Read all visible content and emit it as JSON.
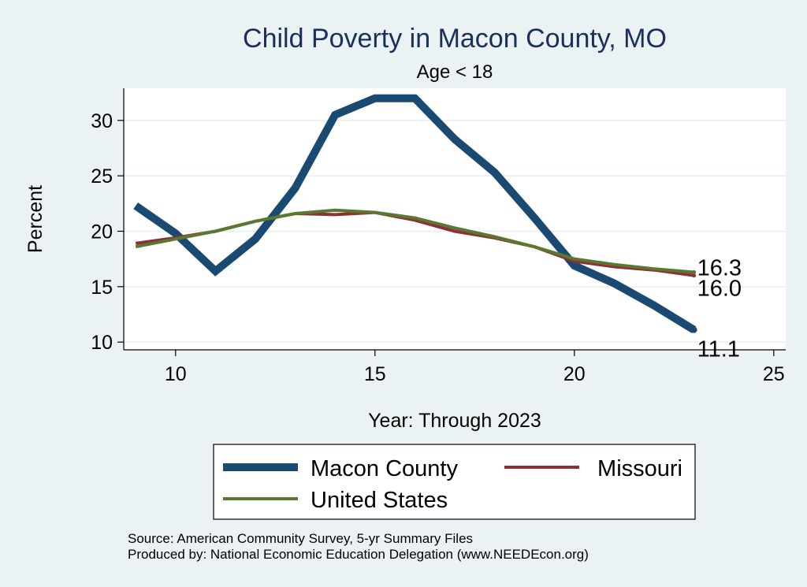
{
  "chart_data": {
    "type": "line",
    "title": "Child Poverty in Macon County, MO",
    "subtitle": "Age < 18",
    "xlabel": "Year: Through 2023",
    "ylabel": "Percent",
    "xlim": [
      8.7,
      25.3
    ],
    "ylim": [
      9.3,
      32.9
    ],
    "xticks": [
      10,
      15,
      20,
      25
    ],
    "yticks": [
      10,
      15,
      20,
      25,
      30
    ],
    "x": [
      9,
      10,
      11,
      12,
      13,
      14,
      15,
      16,
      17,
      18,
      19,
      20,
      21,
      22,
      23
    ],
    "series": [
      {
        "name": "Macon County",
        "color": "#1a4a72",
        "values": [
          22.3,
          19.8,
          16.4,
          19.3,
          23.9,
          30.5,
          32.0,
          32.0,
          28.3,
          25.3,
          21.2,
          16.9,
          15.3,
          13.3,
          11.1
        ],
        "end_label": "11.1"
      },
      {
        "name": "Missouri",
        "color": "#8f2f36",
        "values": [
          18.9,
          19.4,
          20.0,
          20.9,
          21.6,
          21.5,
          21.7,
          21.0,
          20.0,
          19.4,
          18.6,
          17.3,
          16.8,
          16.5,
          16.0
        ],
        "end_label": "16.0"
      },
      {
        "name": "United States",
        "color": "#58792f",
        "values": [
          18.6,
          19.3,
          20.0,
          20.9,
          21.6,
          21.9,
          21.7,
          21.2,
          20.3,
          19.5,
          18.6,
          17.5,
          17.0,
          16.6,
          16.3
        ],
        "end_label": "16.3"
      }
    ],
    "legend": [
      "Macon County",
      "Missouri",
      "United States"
    ],
    "legend_position": "bottom",
    "grid": true
  },
  "source_lines": {
    "line1": "Source: American Community Survey, 5-yr Summary Files",
    "line2": "Produced by: National Economic Education Delegation (www.NEEDEcon.org)"
  }
}
